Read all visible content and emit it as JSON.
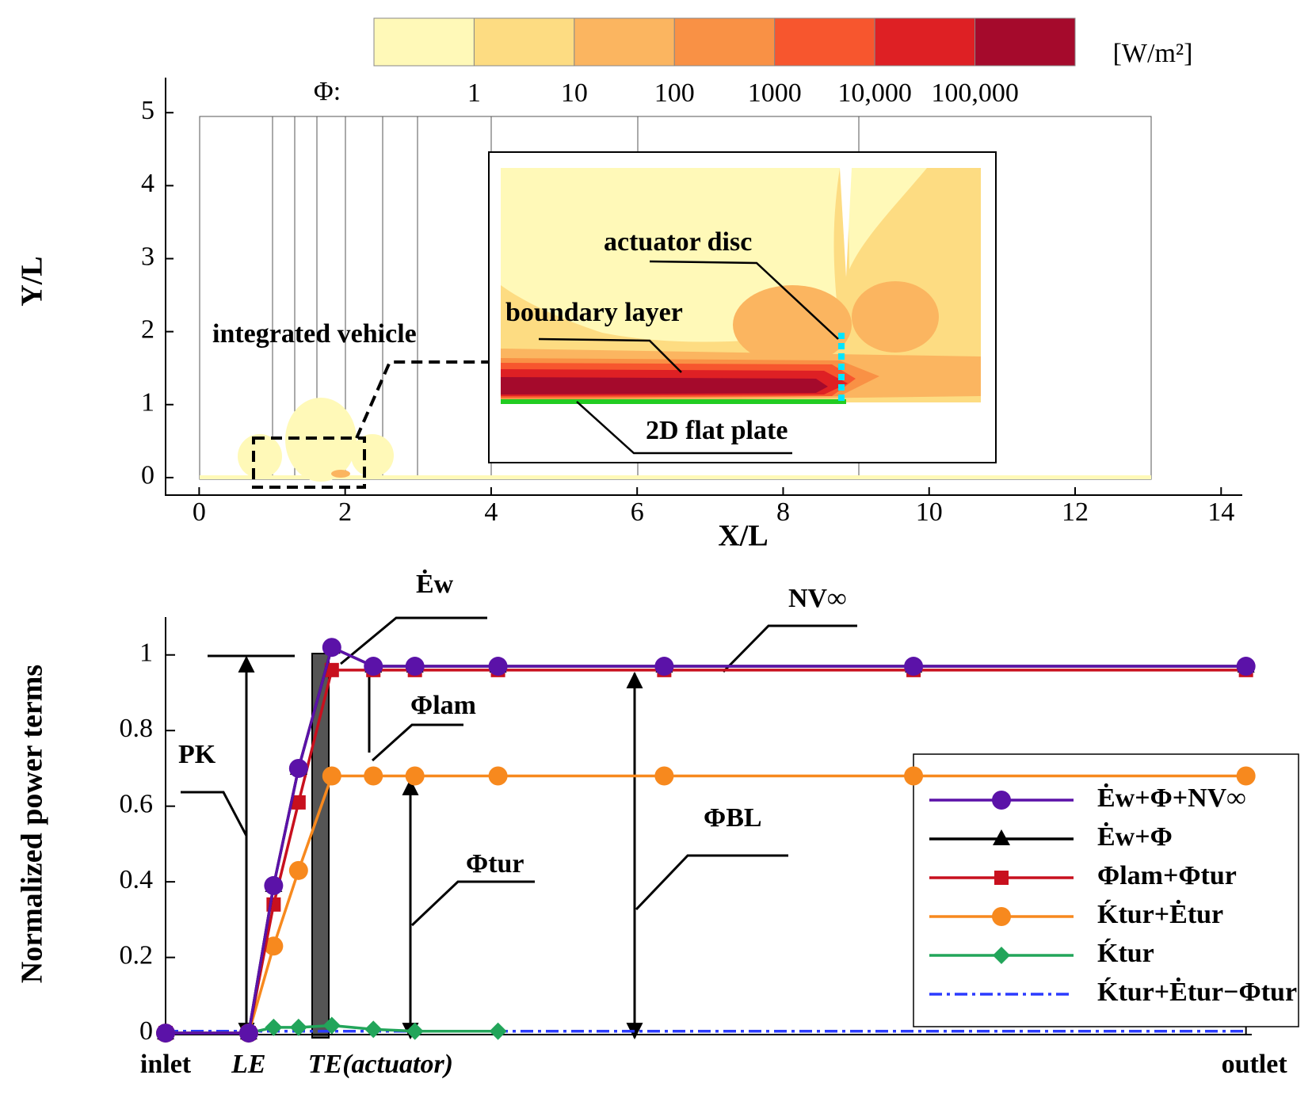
{
  "chart_data": [
    {
      "type": "contour",
      "xlabel": "X/L",
      "ylabel": "Y/L",
      "xlim": [
        -0.46,
        14.29
      ],
      "ylim": [
        -0.24,
        5.48
      ],
      "xticks": [
        0,
        2,
        4,
        6,
        8,
        10,
        12,
        14
      ],
      "yticks": [
        0,
        1,
        2,
        3,
        4,
        5
      ],
      "colorbar": {
        "prefix": "Φ:",
        "unit": "[W/m²]",
        "log": true,
        "clim": [
          0.1,
          1000000
        ],
        "colors": [
          "#fff9b8",
          "#fddc82",
          "#fbb560",
          "#f99145",
          "#f7562e",
          "#de2024",
          "#a50a2c"
        ],
        "ticks": [
          1,
          10,
          100,
          1000,
          {
            "value": 10000,
            "label": "10,000"
          },
          {
            "value": 100000,
            "label": "100,000"
          }
        ]
      },
      "annotations": [
        "integrated vehicle",
        "actuator disc",
        "boundary layer",
        "2D flat plate"
      ]
    },
    {
      "type": "line",
      "ylabel": "Normalized power terms",
      "x": [
        0,
        1,
        1.3,
        1.6,
        2,
        2.5,
        3,
        4,
        6,
        9,
        13
      ],
      "xlim": [
        0,
        13.07
      ],
      "ylim": [
        -0.004,
        1.1
      ],
      "xticks": [
        {
          "value": 0,
          "label": "inlet"
        },
        {
          "value": 1,
          "label": "LE"
        },
        {
          "value": 2,
          "label": "TE(actuator)"
        },
        {
          "value": 13,
          "label": "outlet"
        }
      ],
      "yticks": [
        0,
        0.2,
        0.4,
        0.6,
        0.8,
        1
      ],
      "series": [
        {
          "name": "Ėw+Φ+NV∞",
          "color": "#5b12a8",
          "marker": "circle",
          "linestyle": "solid",
          "values": [
            0,
            0,
            0.39,
            0.7,
            1.02,
            0.97,
            0.97,
            0.97,
            0.97,
            0.97,
            0.97
          ]
        },
        {
          "name": "Ėw+Φ",
          "color": "#000000",
          "marker": "triangle",
          "linestyle": "solid",
          "values": [
            0,
            0,
            0.39,
            0.7,
            1.02,
            0.97,
            0.97,
            0.97,
            0.97,
            0.97,
            0.97
          ]
        },
        {
          "name": "Φlam+Φtur",
          "color": "#c8101e",
          "marker": "square",
          "linestyle": "solid",
          "values": [
            0,
            0,
            0.34,
            0.61,
            0.96,
            0.96,
            0.96,
            0.96,
            0.96,
            0.96,
            0.96
          ]
        },
        {
          "name": "Ḱtur+Ėtur",
          "color": "#f7891e",
          "marker": "circle",
          "linestyle": "solid",
          "values": [
            0,
            0,
            0.23,
            0.43,
            0.68,
            0.68,
            0.68,
            0.68,
            0.68,
            0.68,
            0.68
          ]
        },
        {
          "name": "Ḱtur",
          "color": "#22a55a",
          "marker": "diamond",
          "linestyle": "solid",
          "values": [
            0,
            0,
            0.015,
            0.015,
            0.02,
            0.01,
            0.005,
            0.005,
            null,
            null,
            null
          ]
        },
        {
          "name": "Ḱtur+Ėtur−Φtur",
          "color": "#2b3bff",
          "marker": "none",
          "linestyle": "dashdot",
          "values": [
            0.005,
            0.005,
            0.005,
            0.005,
            0.005,
            0.005,
            0.005,
            0.005,
            0.005,
            0.005,
            0.005
          ]
        }
      ],
      "annotations": [
        "Ėw",
        "NV∞",
        "Φlam",
        "PK",
        "Φtur",
        "ΦBL"
      ]
    }
  ]
}
